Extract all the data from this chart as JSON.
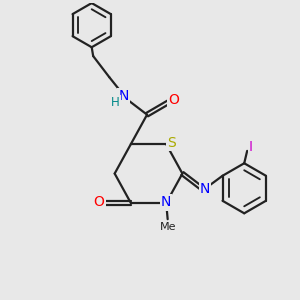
{
  "bg_color": "#e8e8e8",
  "bond_color": "#222222",
  "bond_width": 1.6,
  "atom_colors": {
    "N": "#0000ff",
    "O": "#ff0000",
    "S": "#aaaa00",
    "I": "#cc00cc",
    "H": "#008888",
    "C": "#222222"
  },
  "font_size": 8.5,
  "fig_width": 3.0,
  "fig_height": 3.0,
  "xlim": [
    0,
    10
  ],
  "ylim": [
    0,
    10
  ]
}
